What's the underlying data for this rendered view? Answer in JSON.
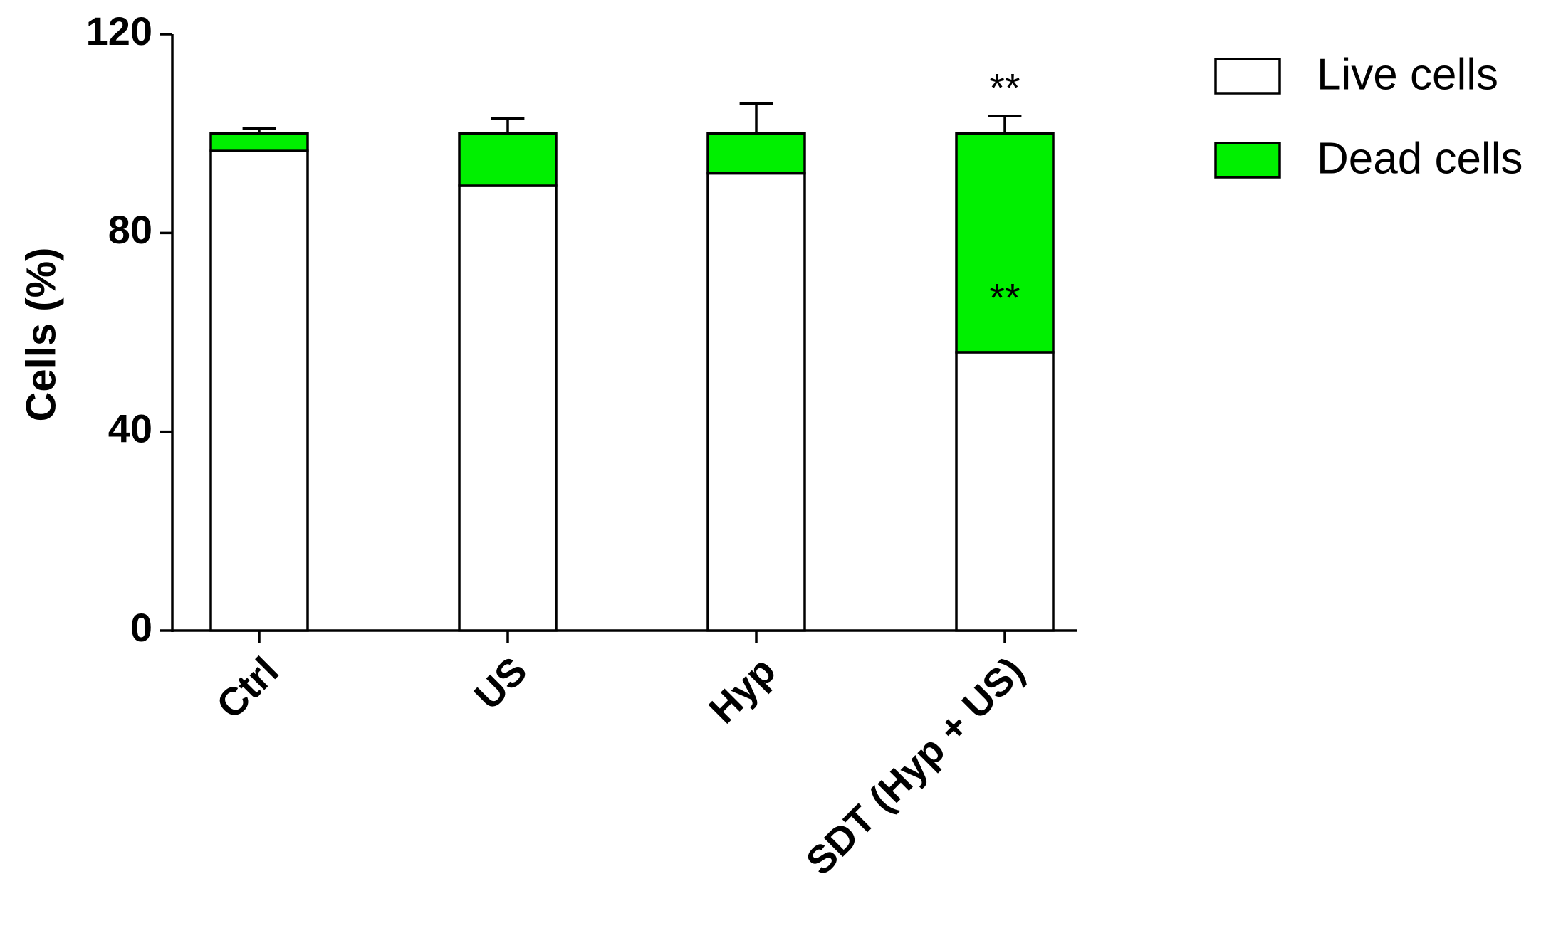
{
  "chart_data": {
    "type": "stacked_bar",
    "y_label": "Cells (%)",
    "categories": [
      "Ctrl",
      "US",
      "Hyp",
      "SDT (Hyp + US)"
    ],
    "series": [
      {
        "name": "Live cells",
        "color": "#ffffff",
        "values": [
          96.5,
          89.5,
          92,
          56
        ],
        "errors": [
          1.5,
          3,
          6,
          4
        ]
      },
      {
        "name": "Dead cells",
        "color": "#00f000",
        "values": [
          3.5,
          10.5,
          8,
          44
        ],
        "errors": [
          1,
          3,
          6,
          3.5
        ]
      }
    ],
    "annotations": [
      "**",
      "**"
    ],
    "ylim": [
      0,
      120
    ],
    "yticks": [
      0,
      40,
      80,
      120
    ],
    "grid": false,
    "legend": "top-right"
  }
}
